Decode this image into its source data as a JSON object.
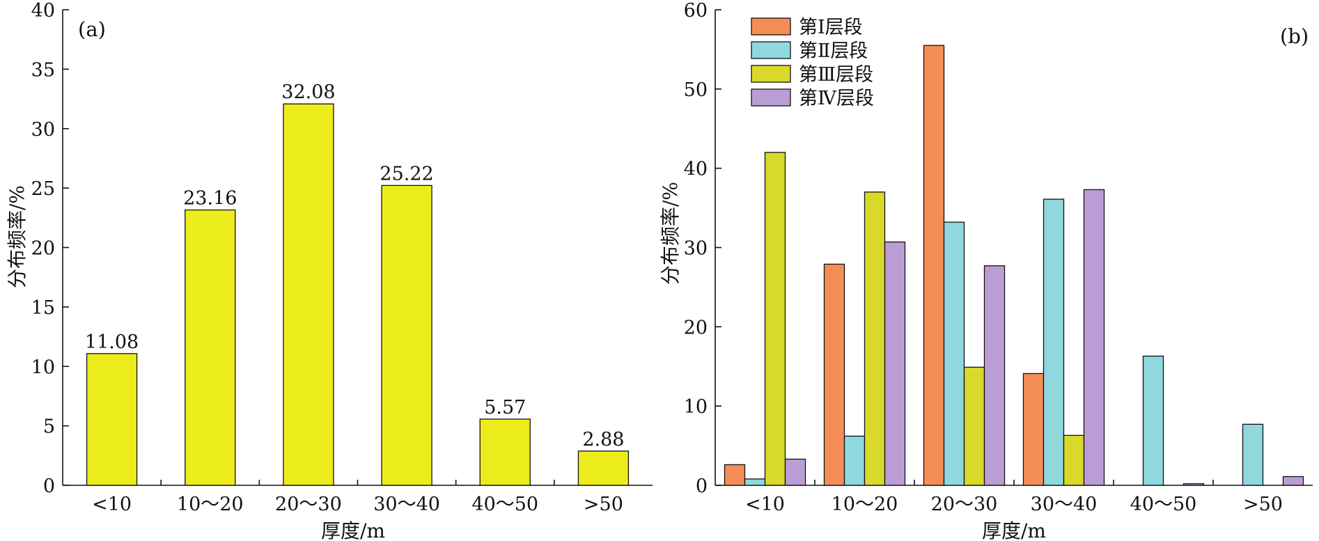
{
  "chart_data": [
    {
      "type": "bar",
      "panel_label": "(a)",
      "categories": [
        "<10",
        "10～20",
        "20～30",
        "30～40",
        "40～50",
        ">50"
      ],
      "values": [
        11.08,
        23.16,
        32.08,
        25.22,
        5.57,
        2.88
      ],
      "value_labels": [
        "11.08",
        "23.16",
        "32.08",
        "25.22",
        "5.57",
        "2.88"
      ],
      "xlabel": "厚度/m",
      "ylabel": "分布频率/%",
      "ylim": [
        0,
        40
      ],
      "yticks": [
        "0",
        "5",
        "10",
        "15",
        "20",
        "25",
        "30",
        "35",
        "40"
      ],
      "bar_color": "#ecec1d",
      "grid": false
    },
    {
      "type": "bar",
      "panel_label": "(b)",
      "categories": [
        "<10",
        "10～20",
        "20～30",
        "30～40",
        "40～50",
        ">50"
      ],
      "series": [
        {
          "name": "第Ⅰ层段",
          "color": "#f58e56",
          "values": [
            2.6,
            27.9,
            55.5,
            14.1,
            0,
            0
          ]
        },
        {
          "name": "第Ⅱ层段",
          "color": "#8ed8de",
          "values": [
            0.8,
            6.2,
            33.2,
            36.1,
            16.3,
            7.7
          ]
        },
        {
          "name": "第Ⅲ层段",
          "color": "#d9d92c",
          "values": [
            42.0,
            37.0,
            14.9,
            6.3,
            0,
            0
          ]
        },
        {
          "name": "第Ⅳ层段",
          "color": "#bb9dd6",
          "values": [
            3.3,
            30.7,
            27.7,
            37.3,
            0.2,
            1.1
          ]
        }
      ],
      "xlabel": "厚度/m",
      "ylabel": "分布频率/%",
      "ylim": [
        0,
        60
      ],
      "yticks": [
        "0",
        "10",
        "20",
        "30",
        "40",
        "50",
        "60"
      ],
      "legend_position": "top-left",
      "grid": false
    }
  ]
}
